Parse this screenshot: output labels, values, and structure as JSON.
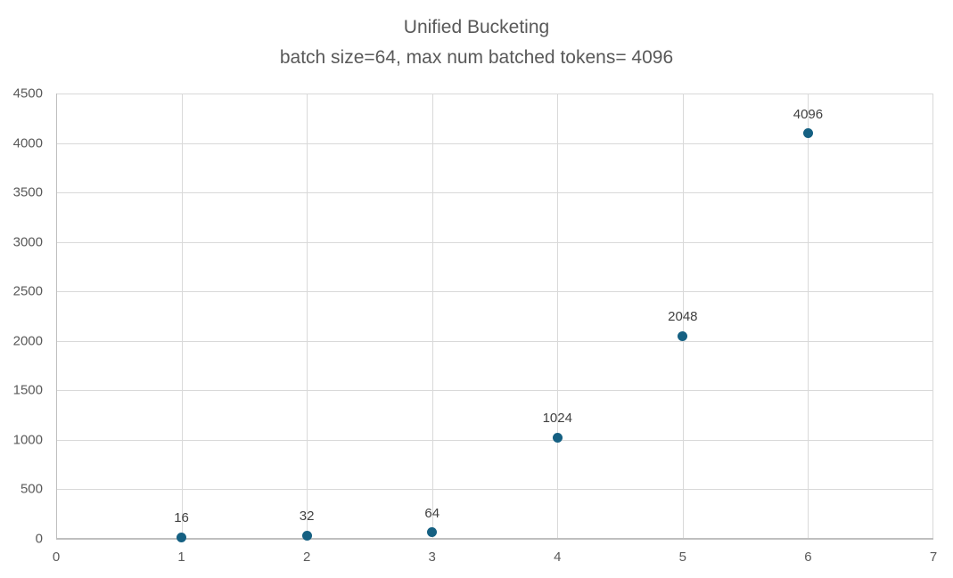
{
  "chart_data": {
    "type": "scatter",
    "title": "Unified Bucketing",
    "subtitle": "batch size=64, max num batched tokens= 4096",
    "x": [
      1,
      2,
      3,
      4,
      5,
      6
    ],
    "y": [
      16,
      32,
      64,
      1024,
      2048,
      4096
    ],
    "point_labels": [
      "16",
      "32",
      "64",
      "1024",
      "2048",
      "4096"
    ],
    "xlabel": "",
    "ylabel": "",
    "xlim": [
      0,
      7
    ],
    "ylim": [
      0,
      4500
    ],
    "xticks": [
      0,
      1,
      2,
      3,
      4,
      5,
      6,
      7
    ],
    "yticks": [
      0,
      500,
      1000,
      1500,
      2000,
      2500,
      3000,
      3500,
      4000,
      4500
    ],
    "grid": true,
    "legend": false,
    "colors": {
      "marker": "#156082",
      "gridline": "#d9d9d9",
      "axis_line": "#bfbfbf",
      "tick_label": "#595959",
      "data_label": "#404040",
      "title": "#595959"
    }
  }
}
